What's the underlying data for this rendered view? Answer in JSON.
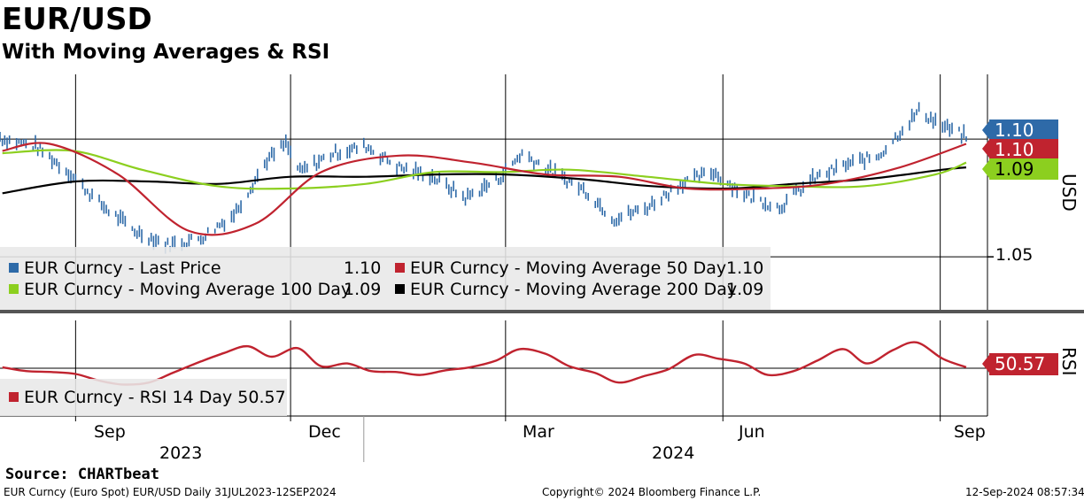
{
  "header": {
    "title": "EUR/USD",
    "subtitle": "With Moving Averages & RSI"
  },
  "legend_price": {
    "items": [
      {
        "label": "EUR Curncy  - Last Price",
        "value": "1.10",
        "color": "#2e6aa8"
      },
      {
        "label": "EUR Curncy  - Moving Average 50 Day",
        "value": "1.10",
        "color": "#c0232f"
      },
      {
        "label": "EUR Curncy  - Moving Average 100 Day",
        "value": "1.09",
        "color": "#8ccf1f"
      },
      {
        "label": "EUR Curncy  - Moving Average 200 Day",
        "value": "1.09",
        "color": "#000000"
      }
    ]
  },
  "legend_rsi": {
    "label": "EUR Curncy  - RSI 14 Day 50.57",
    "color": "#c0232f"
  },
  "badges": {
    "price": "1.10",
    "ma50": "1.10",
    "ma100": "1.09",
    "rsi": "50.57"
  },
  "axis": {
    "y_label": "USD",
    "y_tick": "1.05",
    "rsi_label": "RSI",
    "month_ticks": [
      "Sep",
      "Dec",
      "Mar",
      "Jun",
      "Sep"
    ],
    "years": [
      "2023",
      "2024"
    ]
  },
  "footer": {
    "source": "Source: CHARTbeat",
    "left": "EUR Curncy (Euro Spot) EUR/USD  Daily 31JUL2023-12SEP2024",
    "center": "Copyright© 2024 Bloomberg Finance L.P.",
    "right": "12-Sep-2024 08:57:34"
  },
  "chart_data": {
    "type": "line",
    "title": "EUR/USD",
    "subtitle": "With Moving Averages & RSI",
    "ylabel": "USD",
    "ylim": [
      1.0275,
      1.1275
    ],
    "x_range": [
      "2023-07-31",
      "2024-09-12"
    ],
    "series": [
      {
        "name": "EUR Curncy  - Last Price",
        "color": "#2e6aa8",
        "x": [
          "2023-08-01",
          "2023-08-15",
          "2023-08-29",
          "2023-09-12",
          "2023-09-26",
          "2023-10-10",
          "2023-10-24",
          "2023-11-07",
          "2023-11-21",
          "2023-11-29",
          "2023-12-05",
          "2023-12-19",
          "2024-01-02",
          "2024-01-16",
          "2024-01-30",
          "2024-02-13",
          "2024-02-27",
          "2024-03-08",
          "2024-03-21",
          "2024-04-04",
          "2024-04-16",
          "2024-04-30",
          "2024-05-14",
          "2024-05-28",
          "2024-06-11",
          "2024-06-25",
          "2024-07-09",
          "2024-07-23",
          "2024-08-06",
          "2024-08-23",
          "2024-09-03",
          "2024-09-12"
        ],
        "y": [
          1.1,
          1.097,
          1.086,
          1.072,
          1.061,
          1.055,
          1.058,
          1.068,
          1.091,
          1.098,
          1.086,
          1.094,
          1.097,
          1.088,
          1.084,
          1.075,
          1.083,
          1.094,
          1.086,
          1.078,
          1.066,
          1.071,
          1.081,
          1.086,
          1.076,
          1.071,
          1.083,
          1.089,
          1.093,
          1.112,
          1.105,
          1.101
        ]
      },
      {
        "name": "EUR Curncy  - Moving Average 50 Day",
        "color": "#c0232f",
        "x": [
          "2023-08-01",
          "2023-08-21",
          "2023-09-19",
          "2023-10-19",
          "2023-11-16",
          "2023-12-14",
          "2024-01-16",
          "2024-02-16",
          "2024-03-18",
          "2024-04-18",
          "2024-05-17",
          "2024-06-17",
          "2024-07-15",
          "2024-08-15",
          "2024-09-12"
        ],
        "y": [
          1.095,
          1.098,
          1.085,
          1.061,
          1.064,
          1.086,
          1.093,
          1.09,
          1.085,
          1.084,
          1.079,
          1.079,
          1.081,
          1.088,
          1.098
        ]
      },
      {
        "name": "EUR Curncy  - Moving Average 100 Day",
        "color": "#8ccf1f",
        "x": [
          "2023-08-01",
          "2023-08-31",
          "2023-09-29",
          "2023-10-31",
          "2023-11-30",
          "2024-01-02",
          "2024-01-31",
          "2024-02-29",
          "2024-03-28",
          "2024-04-30",
          "2024-05-31",
          "2024-06-28",
          "2024-07-31",
          "2024-08-30",
          "2024-09-12"
        ],
        "y": [
          1.094,
          1.095,
          1.087,
          1.08,
          1.079,
          1.081,
          1.086,
          1.086,
          1.087,
          1.084,
          1.081,
          1.08,
          1.08,
          1.085,
          1.09
        ]
      },
      {
        "name": "EUR Curncy  - Moving Average 200 Day",
        "color": "#000000",
        "x": [
          "2023-08-01",
          "2023-09-01",
          "2023-10-02",
          "2023-11-01",
          "2023-12-01",
          "2024-01-02",
          "2024-02-01",
          "2024-03-01",
          "2024-04-02",
          "2024-05-02",
          "2024-06-03",
          "2024-07-01",
          "2024-08-01",
          "2024-09-02",
          "2024-09-12"
        ],
        "y": [
          1.077,
          1.082,
          1.082,
          1.081,
          1.084,
          1.084,
          1.085,
          1.085,
          1.083,
          1.08,
          1.079,
          1.081,
          1.083,
          1.087,
          1.088
        ]
      }
    ],
    "rsi": {
      "name": "EUR Curncy  - RSI 14 Day",
      "color": "#c0232f",
      "ylim": [
        0,
        100
      ],
      "reference_line": 50,
      "x": [
        "2023-08-01",
        "2023-08-11",
        "2023-08-22",
        "2023-09-01",
        "2023-09-11",
        "2023-09-21",
        "2023-10-02",
        "2023-10-12",
        "2023-10-24",
        "2023-11-03",
        "2023-11-13",
        "2023-11-23",
        "2023-12-04",
        "2023-12-14",
        "2023-12-25",
        "2024-01-04",
        "2024-01-15",
        "2024-01-25",
        "2024-02-05",
        "2024-02-15",
        "2024-02-26",
        "2024-03-07",
        "2024-03-18",
        "2024-03-28",
        "2024-04-08",
        "2024-04-18",
        "2024-04-29",
        "2024-05-09",
        "2024-05-20",
        "2024-05-30",
        "2024-06-10",
        "2024-06-20",
        "2024-07-01",
        "2024-07-11",
        "2024-07-22",
        "2024-08-01",
        "2024-08-12",
        "2024-08-22",
        "2024-09-02",
        "2024-09-12"
      ],
      "y": [
        51,
        47,
        46,
        44,
        37,
        33,
        35,
        45,
        57,
        66,
        73,
        62,
        71,
        52,
        55,
        47,
        46,
        43,
        48,
        51,
        58,
        70,
        65,
        52,
        45,
        35,
        42,
        49,
        64,
        60,
        55,
        43,
        47,
        58,
        70,
        55,
        69,
        77,
        60,
        51
      ]
    }
  }
}
